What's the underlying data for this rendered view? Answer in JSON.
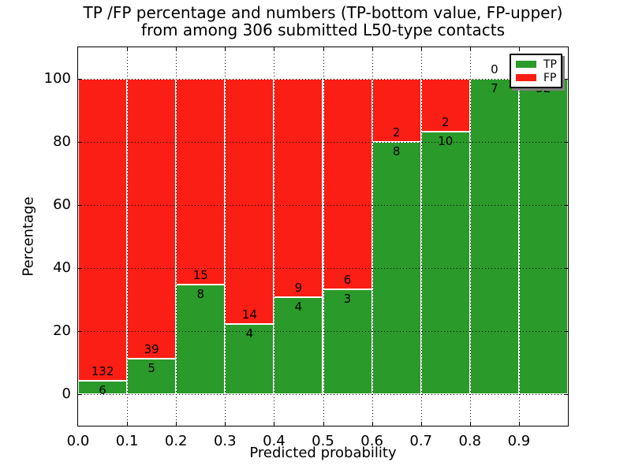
{
  "title_line1": "TP /FP percentage and numbers (TP-bottom value, FP-upper)",
  "title_line2": "from among 306 submitted L50-type contacts",
  "chart_data": {
    "type": "bar",
    "stacked": true,
    "normalized": "each bin shown as percentage of bin total (TP bottom, FP top)",
    "title": "TP /FP percentage and numbers (TP-bottom value, FP-upper) from among 306 submitted L50-type contacts",
    "xlabel": "Predicted probability",
    "ylabel": "Percentage",
    "xlim": [
      0.0,
      1.0
    ],
    "ylim": [
      -10,
      110
    ],
    "grid": true,
    "bin_edges": [
      0.0,
      0.1,
      0.2,
      0.3,
      0.4,
      0.5,
      0.6,
      0.7,
      0.8,
      0.9,
      1.0
    ],
    "xtick_labels": [
      "0.0",
      "0.1",
      "0.2",
      "0.3",
      "0.4",
      "0.5",
      "0.6",
      "0.7",
      "0.8",
      "0.9"
    ],
    "ytick_values": [
      0,
      20,
      40,
      60,
      80,
      100
    ],
    "ytick_labels": [
      "0",
      "20",
      "40",
      "60",
      "80",
      "100"
    ],
    "series": [
      {
        "name": "TP",
        "color": "#2a9a2a",
        "counts": [
          6,
          5,
          8,
          4,
          4,
          3,
          8,
          10,
          7,
          32
        ]
      },
      {
        "name": "FP",
        "color": "#fa1e14",
        "counts": [
          132,
          39,
          15,
          14,
          9,
          6,
          2,
          2,
          0,
          0
        ]
      }
    ],
    "tp_percent": [
      4.3,
      11.4,
      34.8,
      22.2,
      30.8,
      33.3,
      80.0,
      83.3,
      100.0,
      100.0
    ],
    "tp_labels": [
      "6",
      "5",
      "8",
      "4",
      "4",
      "3",
      "8",
      "10",
      "7",
      "32"
    ],
    "fp_labels": [
      "132",
      "39",
      "15",
      "14",
      "9",
      "6",
      "2",
      "2",
      "0",
      ""
    ],
    "legend": {
      "position": "upper right",
      "entries": [
        {
          "label": "TP",
          "color": "#2a9a2a"
        },
        {
          "label": "FP",
          "color": "#fa1e14"
        }
      ]
    }
  }
}
